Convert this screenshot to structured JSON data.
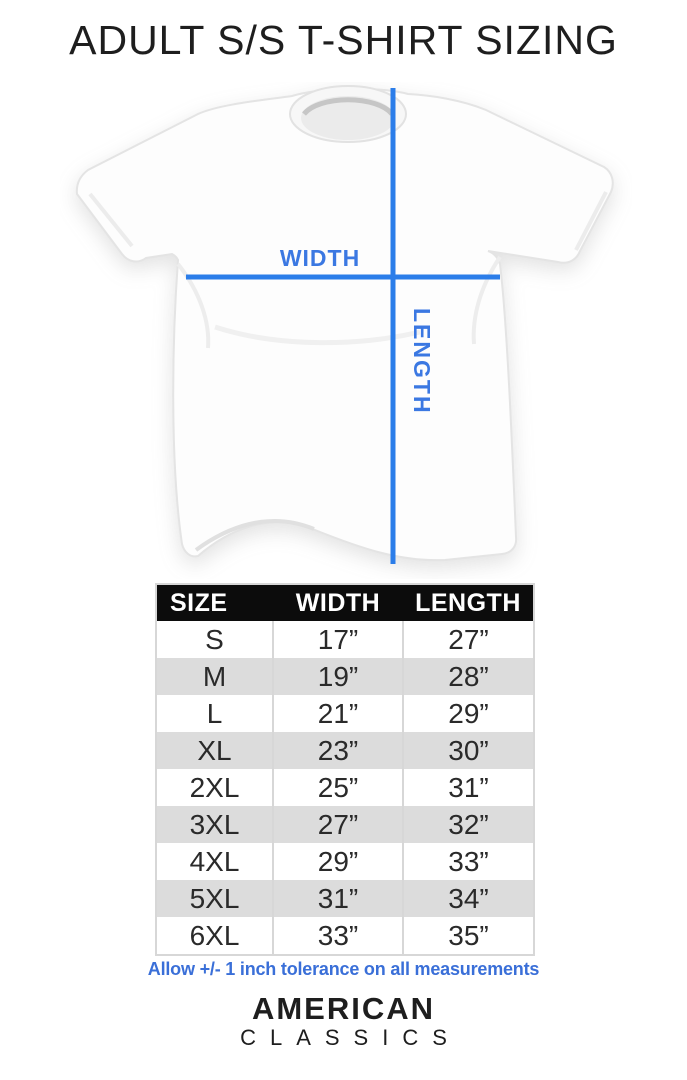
{
  "title": "ADULT S/S T-SHIRT SIZING",
  "diagram": {
    "width_label": "WIDTH",
    "length_label": "LENGTH"
  },
  "size_chart": {
    "columns": [
      "SIZE",
      "WIDTH",
      "LENGTH"
    ],
    "rows": [
      {
        "size": "S",
        "width": "17”",
        "length": "27”"
      },
      {
        "size": "M",
        "width": "19”",
        "length": "28”"
      },
      {
        "size": "L",
        "width": "21”",
        "length": "29”"
      },
      {
        "size": "XL",
        "width": "23”",
        "length": "30”"
      },
      {
        "size": "2XL",
        "width": "25”",
        "length": "31”"
      },
      {
        "size": "3XL",
        "width": "27”",
        "length": "32”"
      },
      {
        "size": "4XL",
        "width": "29”",
        "length": "33”"
      },
      {
        "size": "5XL",
        "width": "31”",
        "length": "34”"
      },
      {
        "size": "6XL",
        "width": "33”",
        "length": "35”"
      }
    ]
  },
  "tolerance_note": "Allow +/- 1 inch tolerance on all measurements",
  "brand": {
    "name_line1": "AMERICAN",
    "name_line2": "CLASSICS"
  },
  "colors": {
    "accent-blue": "#2b7de9",
    "label-blue": "#3b78e2",
    "note-blue": "#3a6fd8",
    "header-bg": "#0c0c0c",
    "row-alt": "#dcdcdc"
  }
}
